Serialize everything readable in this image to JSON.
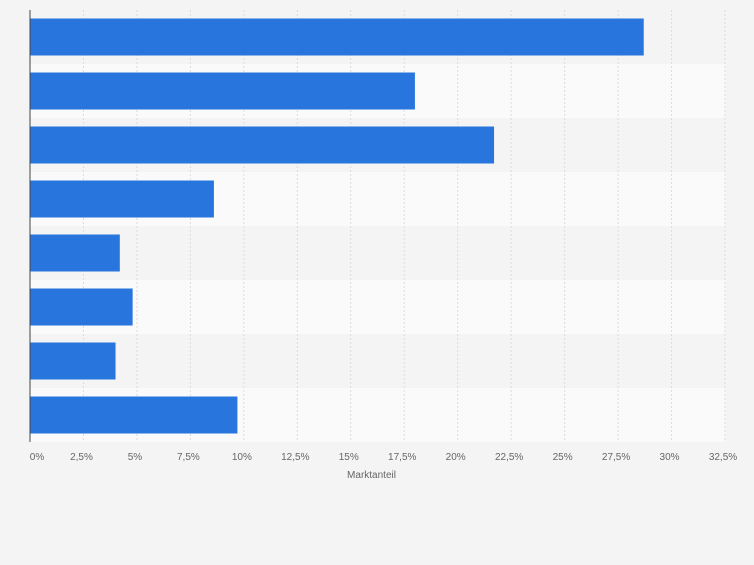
{
  "chart_data": {
    "type": "bar",
    "orientation": "horizontal",
    "categories": [
      "",
      "",
      "",
      "",
      "",
      "",
      "",
      ""
    ],
    "values": [
      28.7,
      18.0,
      21.7,
      8.6,
      4.2,
      4.8,
      4.0,
      9.7
    ],
    "xlabel": "Marktanteil",
    "ylabel": "",
    "xlim": [
      0,
      32.5
    ],
    "x_ticks": [
      0,
      2.5,
      5,
      7.5,
      10,
      12.5,
      15,
      17.5,
      20,
      22.5,
      25,
      27.5,
      30,
      32.5
    ],
    "x_tick_labels": [
      "0%",
      "2,5%",
      "5%",
      "7,5%",
      "10%",
      "12,5%",
      "15%",
      "17,5%",
      "20%",
      "22,5%",
      "25%",
      "27,5%",
      "30%",
      "32,5%"
    ],
    "grid": true,
    "bar_color": "#2876dd",
    "band_colors": [
      "#f4f4f4",
      "#fafafa"
    ]
  }
}
